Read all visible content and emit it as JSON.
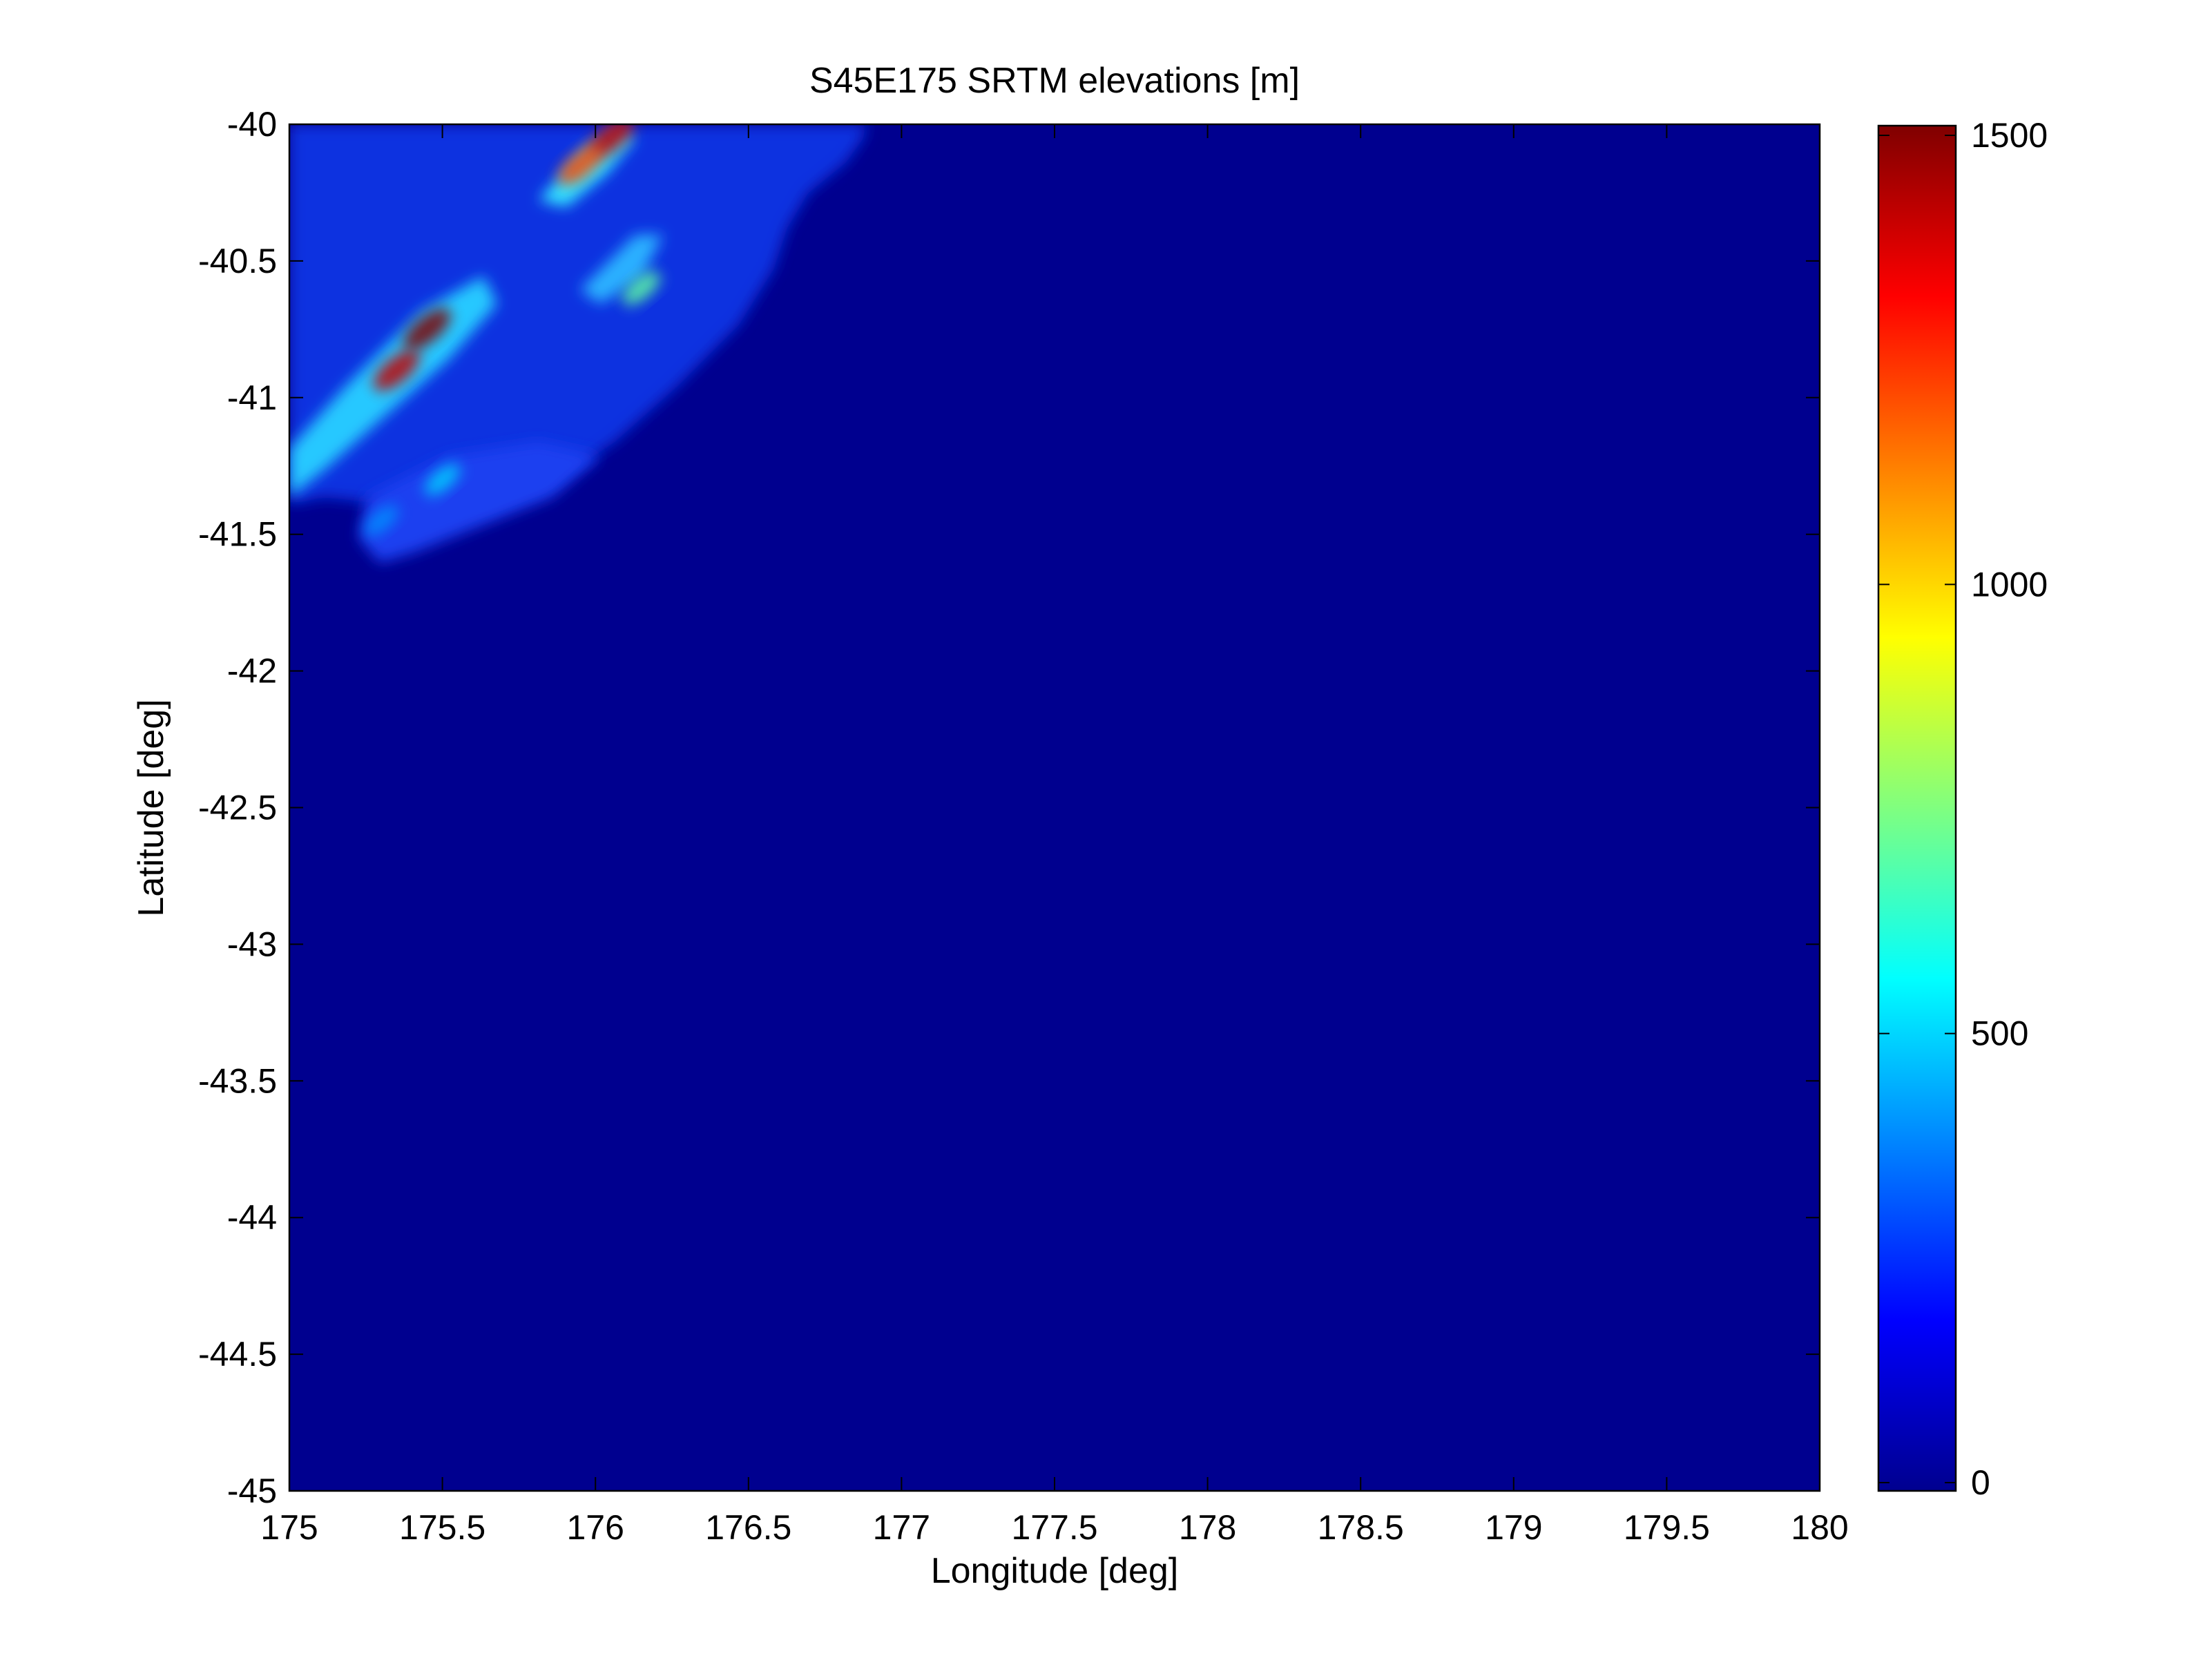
{
  "chart_data": {
    "type": "heatmap",
    "title": "S45E175 SRTM elevations [m]",
    "xlabel": "Longitude [deg]",
    "ylabel": "Latitude [deg]",
    "xlim": [
      175,
      180
    ],
    "ylim": [
      -45,
      -40
    ],
    "x_ticks": [
      175,
      175.5,
      176,
      176.5,
      177,
      177.5,
      178,
      178.5,
      179,
      179.5,
      180
    ],
    "x_tick_labels": [
      "175",
      "175.5",
      "176",
      "176.5",
      "177",
      "177.5",
      "178",
      "178.5",
      "179",
      "179.5",
      "180"
    ],
    "y_ticks": [
      -40,
      -40.5,
      -41,
      -41.5,
      -42,
      -42.5,
      -43,
      -43.5,
      -44,
      -44.5,
      -45
    ],
    "y_tick_labels": [
      "-40",
      "-40.5",
      "-41",
      "-41.5",
      "-42",
      "-42.5",
      "-43",
      "-43.5",
      "-44",
      "-44.5",
      "-45"
    ],
    "colorbar": {
      "colormap": "jet",
      "range": [
        0,
        1500
      ],
      "ticks": [
        0,
        500,
        1000,
        1500
      ],
      "tick_labels": [
        "0",
        "500",
        "1000",
        "1500"
      ],
      "placement": "right"
    },
    "background_value": 0,
    "terrain_regions": [
      {
        "lon": 175.35,
        "lat": -40.9,
        "elev": 1400
      },
      {
        "lon": 175.45,
        "lat": -40.75,
        "elev": 1500
      },
      {
        "lon": 176.05,
        "lat": -40.05,
        "elev": 1400
      },
      {
        "lon": 175.95,
        "lat": -40.15,
        "elev": 1200
      },
      {
        "lon": 176.15,
        "lat": -40.6,
        "elev": 700
      },
      {
        "lon": 175.5,
        "lat": -41.3,
        "elev": 500
      },
      {
        "lon": 175.3,
        "lat": -41.45,
        "elev": 400
      }
    ],
    "grid": false
  }
}
